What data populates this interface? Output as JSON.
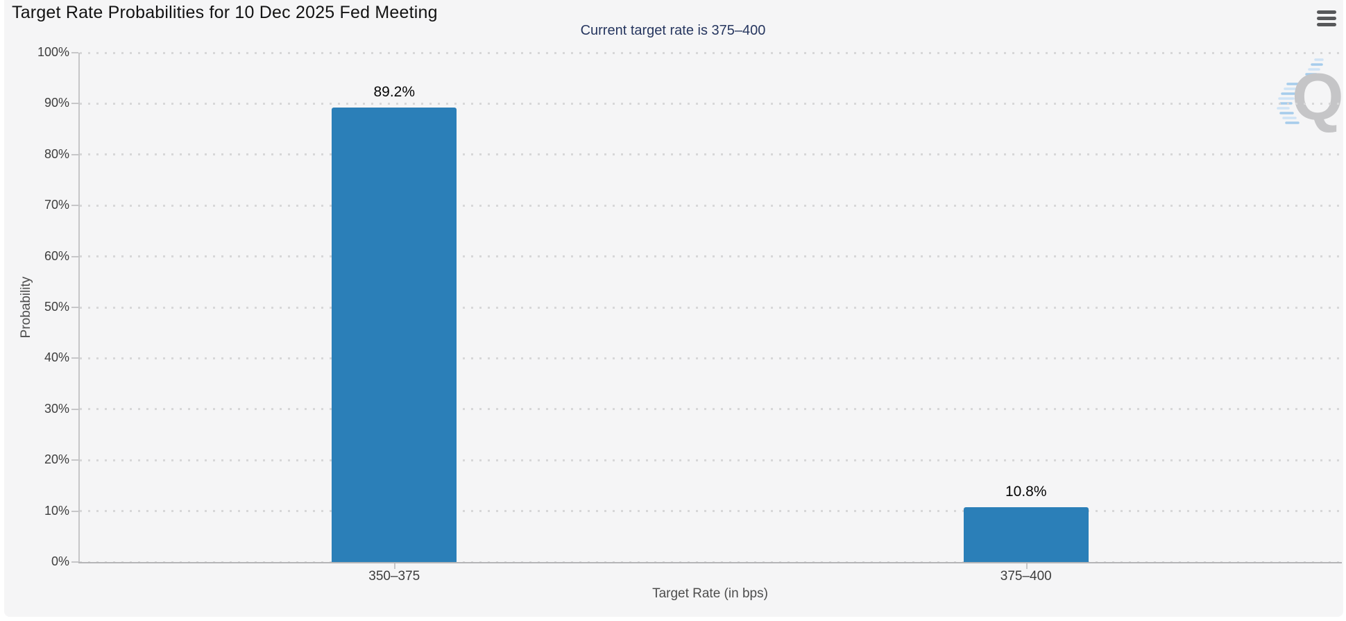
{
  "header": {
    "title": "Target Rate Probabilities for 10 Dec 2025 Fed Meeting",
    "menu_icon": "hamburger-icon"
  },
  "subtitle": "Current target rate is 375–400",
  "watermark": {
    "letter": "Q"
  },
  "colors": {
    "bar": "#2b7fb8",
    "panel_background": "#f5f5f6",
    "subtitle_text": "#26365f",
    "grid_dots": "#d7d7d8",
    "axis_lines": "#c6c6c8",
    "watermark_gray": "#c5c5c7",
    "watermark_blue_light": "#cfe3f5",
    "watermark_blue_dark": "#a6cceb",
    "menu_icon": "#57585a"
  },
  "chart_data": {
    "type": "bar",
    "title": "Target Rate Probabilities for 10 Dec 2025 Fed Meeting",
    "subtitle": "Current target rate is 375–400",
    "categories": [
      "350–375",
      "375–400"
    ],
    "values": [
      89.2,
      10.8
    ],
    "value_labels": [
      "89.2%",
      "10.8%"
    ],
    "xlabel": "Target Rate (in bps)",
    "ylabel": "Probability",
    "ylim": [
      0,
      100
    ],
    "ytick_step": 10,
    "ytick_labels": [
      "0%",
      "10%",
      "20%",
      "30%",
      "40%",
      "50%",
      "60%",
      "70%",
      "80%",
      "90%",
      "100%"
    ],
    "grid": "dotted-horizontal",
    "legend": "none",
    "bar_color": "#2b7fb8"
  }
}
